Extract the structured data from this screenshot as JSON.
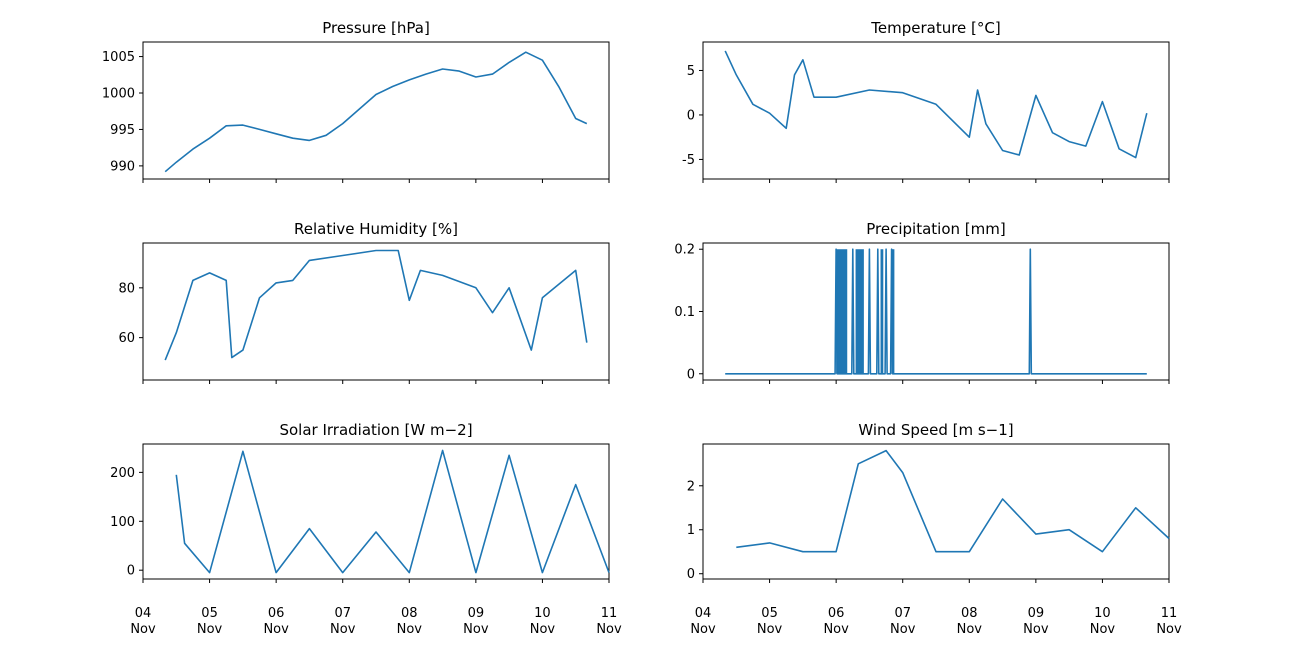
{
  "figure": {
    "line_color": "#1f77b4",
    "x_ticks": [
      {
        "day": "04",
        "month": "Nov"
      },
      {
        "day": "05",
        "month": "Nov"
      },
      {
        "day": "06",
        "month": "Nov"
      },
      {
        "day": "07",
        "month": "Nov"
      },
      {
        "day": "08",
        "month": "Nov"
      },
      {
        "day": "09",
        "month": "Nov"
      },
      {
        "day": "10",
        "month": "Nov"
      },
      {
        "day": "11",
        "month": "Nov"
      }
    ]
  },
  "chart_data": [
    {
      "type": "line",
      "title": "Pressure [hPa]",
      "xlim": [
        "2019-11-04",
        "2019-11-11"
      ],
      "ylim": [
        988.2,
        1007.0
      ],
      "yticks": [
        990,
        995,
        1000,
        1005
      ],
      "x": [
        "11-04 08:00",
        "11-04 12:00",
        "11-04 18:00",
        "11-05 00:00",
        "11-05 06:00",
        "11-05 12:00",
        "11-05 18:00",
        "11-06 00:00",
        "11-06 06:00",
        "11-06 12:00",
        "11-06 18:00",
        "11-07 00:00",
        "11-07 06:00",
        "11-07 12:00",
        "11-07 18:00",
        "11-08 00:00",
        "11-08 06:00",
        "11-08 12:00",
        "11-08 18:00",
        "11-09 00:00",
        "11-09 06:00",
        "11-09 12:00",
        "11-09 18:00",
        "11-10 00:00",
        "11-10 06:00",
        "11-10 12:00",
        "11-10 16:00"
      ],
      "values": [
        989.2,
        990.5,
        992.3,
        993.8,
        995.5,
        995.6,
        995.0,
        994.4,
        993.8,
        993.5,
        994.2,
        995.8,
        997.8,
        999.8,
        1000.9,
        1001.8,
        1002.6,
        1003.3,
        1003.0,
        1002.2,
        1002.6,
        1004.2,
        1005.6,
        1004.5,
        1000.8,
        996.5,
        995.8
      ]
    },
    {
      "type": "line",
      "title": "Temperature [°C]",
      "xlim": [
        "2019-11-04",
        "2019-11-11"
      ],
      "ylim": [
        -7.2,
        8.2
      ],
      "yticks": [
        -5,
        0,
        5
      ],
      "x": [
        "11-04 08:00",
        "11-04 12:00",
        "11-04 18:00",
        "11-05 00:00",
        "11-05 06:00",
        "11-05 09:00",
        "11-05 12:00",
        "11-05 16:00",
        "11-06 00:00",
        "11-06 12:00",
        "11-07 00:00",
        "11-07 12:00",
        "11-08 00:00",
        "11-08 03:00",
        "11-08 06:00",
        "11-08 12:00",
        "11-08 18:00",
        "11-09 00:00",
        "11-09 06:00",
        "11-09 12:00",
        "11-09 18:00",
        "11-10 00:00",
        "11-10 06:00",
        "11-10 12:00",
        "11-10 16:00"
      ],
      "values": [
        7.2,
        4.5,
        1.2,
        0.2,
        -1.5,
        4.5,
        6.2,
        2.0,
        2.0,
        2.8,
        2.5,
        1.2,
        -2.5,
        2.8,
        -1.0,
        -4.0,
        -4.5,
        2.2,
        -2.0,
        -3.0,
        -3.5,
        1.5,
        -3.8,
        -4.8,
        0.2
      ]
    },
    {
      "type": "line",
      "title": "Relative Humidity [%]",
      "xlim": [
        "2019-11-04",
        "2019-11-11"
      ],
      "ylim": [
        43,
        98
      ],
      "yticks": [
        60,
        80
      ],
      "x": [
        "11-04 08:00",
        "11-04 12:00",
        "11-04 18:00",
        "11-05 00:00",
        "11-05 06:00",
        "11-05 08:00",
        "11-05 12:00",
        "11-05 18:00",
        "11-06 00:00",
        "11-06 06:00",
        "11-06 12:00",
        "11-07 00:00",
        "11-07 12:00",
        "11-07 20:00",
        "11-08 00:00",
        "11-08 04:00",
        "11-08 12:00",
        "11-09 00:00",
        "11-09 06:00",
        "11-09 12:00",
        "11-09 20:00",
        "11-10 00:00",
        "11-10 12:00",
        "11-10 16:00"
      ],
      "values": [
        51,
        62,
        83,
        86,
        83,
        52,
        55,
        76,
        82,
        83,
        91,
        93,
        95,
        95,
        75,
        87,
        85,
        80,
        70,
        80,
        55,
        76,
        87,
        58
      ]
    },
    {
      "type": "line",
      "title": "Precipitation [mm]",
      "xlim": [
        "2019-11-04",
        "2019-11-11"
      ],
      "ylim": [
        -0.01,
        0.21
      ],
      "yticks": [
        0.0,
        0.1,
        0.2
      ],
      "x": [
        "11-04 08:00",
        "11-06 00:00",
        "11-06 06:00",
        "11-06 12:00",
        "11-06 15:00",
        "11-06 18:00",
        "11-06 20:00",
        "11-08 22:00",
        "11-10 16:00"
      ],
      "values": [
        0.0,
        0.2,
        0.2,
        0.2,
        0.2,
        0.2,
        0.2,
        0.2,
        0.0
      ]
    },
    {
      "type": "line",
      "title": "Solar Irradiation [W m−2]",
      "xlim": [
        "2019-11-04",
        "2019-11-11"
      ],
      "ylim": [
        -18,
        258
      ],
      "yticks": [
        0,
        100,
        200
      ],
      "x": [
        "11-04 12:00",
        "11-04 15:00",
        "11-05 00:00",
        "11-05 12:00",
        "11-06 00:00",
        "11-06 12:00",
        "11-07 00:00",
        "11-07 12:00",
        "11-08 00:00",
        "11-08 12:00",
        "11-09 00:00",
        "11-09 12:00",
        "11-10 00:00",
        "11-10 12:00",
        "11-10 23:59"
      ],
      "values": [
        195,
        55,
        -5,
        243,
        -5,
        85,
        -5,
        78,
        -5,
        245,
        -5,
        235,
        -5,
        175,
        -5
      ]
    },
    {
      "type": "line",
      "title": "Wind Speed [m s−1]",
      "xlim": [
        "2019-11-04",
        "2019-11-11"
      ],
      "ylim": [
        -0.12,
        2.95
      ],
      "yticks": [
        0,
        1,
        2
      ],
      "x": [
        "11-04 12:00",
        "11-05 00:00",
        "11-05 12:00",
        "11-06 00:00",
        "11-06 08:00",
        "11-06 18:00",
        "11-07 00:00",
        "11-07 12:00",
        "11-08 00:00",
        "11-08 12:00",
        "11-09 00:00",
        "11-09 12:00",
        "11-10 00:00",
        "11-10 12:00",
        "11-10 23:59"
      ],
      "values": [
        0.6,
        0.7,
        0.5,
        0.5,
        2.5,
        2.8,
        2.3,
        0.5,
        0.5,
        1.7,
        0.9,
        1.0,
        0.5,
        1.5,
        0.8
      ]
    }
  ]
}
